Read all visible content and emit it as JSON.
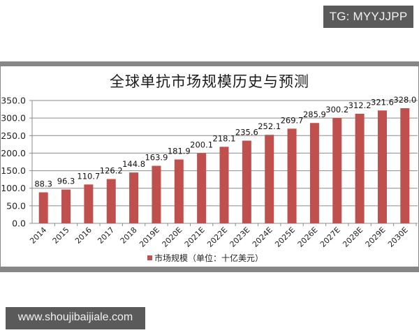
{
  "watermarks": {
    "top": "TG: MYYJJPP",
    "bottom": "www.shoujibaijiale.com"
  },
  "chart_data": {
    "type": "bar",
    "title": "全球单抗市场规模历史与预测",
    "xlabel": "",
    "ylabel": "",
    "categories": [
      "2014",
      "2015",
      "2016",
      "2017",
      "2018",
      "2019E",
      "2020E",
      "2021E",
      "2022E",
      "2023E",
      "2024E",
      "2025E",
      "2026E",
      "2027E",
      "2028E",
      "2029E",
      "2030E"
    ],
    "series": [
      {
        "name": "市场规模（单位：十亿美元）",
        "color": "#c0504d",
        "values": [
          88.3,
          96.3,
          110.7,
          126.2,
          144.8,
          163.9,
          181.9,
          200.1,
          218.1,
          235.6,
          252.1,
          269.7,
          285.9,
          300.2,
          312.2,
          321.6,
          328.0
        ],
        "labels": [
          "88.3",
          "96.3",
          "110.7",
          "126.2",
          "144.8",
          "163.9",
          "181.9",
          "200.1",
          "218.1",
          "235.6",
          "252.1",
          "269.7",
          "285.9",
          "300.2",
          "312.2",
          "321.6",
          "328.0"
        ]
      }
    ],
    "ylim": [
      0,
      350
    ],
    "yticks": [
      "0.0",
      "50.0",
      "100.0",
      "150.0",
      "200.0",
      "250.0",
      "300.0",
      "350.0"
    ],
    "grid": true,
    "legend_position": "bottom"
  }
}
